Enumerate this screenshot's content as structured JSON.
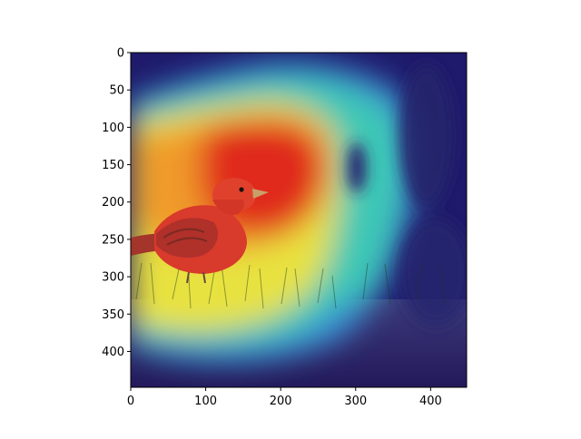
{
  "figure": {
    "image_description_icon": "bird-on-grass-heatmap-overlay",
    "colormap": "jet",
    "x_axis": {
      "ticks": [
        0,
        100,
        200,
        300,
        400
      ],
      "range": [
        0,
        448
      ]
    },
    "y_axis": {
      "ticks": [
        0,
        50,
        100,
        150,
        200,
        250,
        300,
        350,
        400
      ],
      "range": [
        0,
        448
      ],
      "inverted": true
    },
    "colors": {
      "frame": "#000000",
      "background_low": "#1f1a6b",
      "heat_high": "#e2231a",
      "heat_mid": "#f0e23a",
      "heat_cool": "#38c6b8",
      "bird_red": "#d83a2b"
    }
  }
}
